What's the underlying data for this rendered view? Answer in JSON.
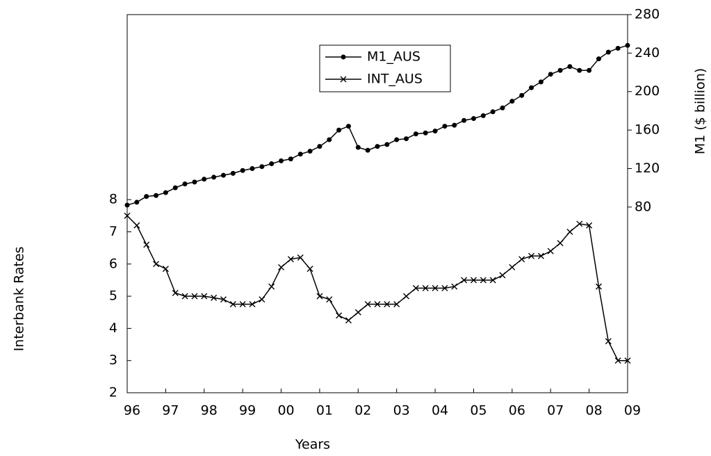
{
  "chart_data": {
    "type": "line",
    "x_label": "Years",
    "y_label": "Interbank Rates",
    "y2_label": "M1 ($ billion)",
    "categories": [
      "96",
      null,
      null,
      null,
      "97",
      null,
      null,
      null,
      "98",
      null,
      null,
      null,
      "99",
      null,
      null,
      null,
      "00",
      null,
      null,
      null,
      "01",
      null,
      null,
      null,
      "02",
      null,
      null,
      null,
      "03",
      null,
      null,
      null,
      "04",
      null,
      null,
      null,
      "05",
      null,
      null,
      null,
      "06",
      null,
      null,
      null,
      "07",
      null,
      null,
      null,
      "08",
      null,
      null,
      null,
      "09"
    ],
    "series": [
      {
        "name": "M1_AUS",
        "color": "#000000",
        "marker": "dot",
        "axis": "y2",
        "values": [
          82,
          85,
          91,
          92,
          95,
          100,
          104,
          106,
          109,
          111,
          113,
          115,
          118,
          120,
          122,
          125,
          128,
          130,
          135,
          138,
          143,
          150,
          160,
          164,
          142,
          139,
          143,
          145,
          150,
          151,
          156,
          157,
          159,
          164,
          165,
          170,
          172,
          175,
          179,
          183,
          190,
          196,
          204,
          210,
          218,
          222,
          226,
          222,
          222,
          234,
          241,
          245,
          248
        ]
      },
      {
        "name": "INT_AUS",
        "color": "#000000",
        "marker": "x",
        "axis": "y",
        "values": [
          7.5,
          7.2,
          6.6,
          6.0,
          5.85,
          5.1,
          5.0,
          5.0,
          5.0,
          4.95,
          4.9,
          4.75,
          4.75,
          4.75,
          4.9,
          5.3,
          5.9,
          6.15,
          6.2,
          5.85,
          5.0,
          4.9,
          4.4,
          4.25,
          4.5,
          4.75,
          4.75,
          4.75,
          4.75,
          5.0,
          5.25,
          5.25,
          5.25,
          5.25,
          5.3,
          5.5,
          5.5,
          5.5,
          5.5,
          5.65,
          5.9,
          6.15,
          6.25,
          6.25,
          6.4,
          6.65,
          7.0,
          7.25,
          7.2,
          5.3,
          3.6,
          3.0,
          3.0
        ]
      }
    ],
    "ylim": [
      2,
      13.75
    ],
    "yticks": [
      2,
      3,
      4,
      5,
      6,
      7,
      8
    ],
    "y2lim": [
      -113,
      280
    ],
    "y2ticks": [
      80,
      120,
      160,
      200,
      240,
      280
    ],
    "grid": false,
    "legend": "top-center"
  }
}
